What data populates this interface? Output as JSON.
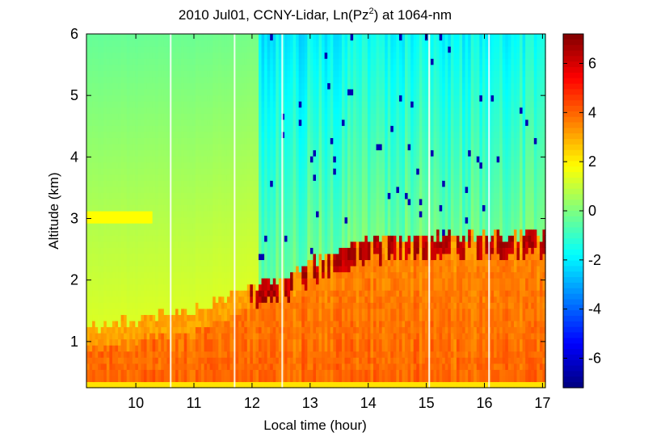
{
  "chart_data": {
    "type": "heatmap",
    "title_main": "2010 Jul01, CCNY-Lidar, Ln(Pz",
    "title_sup": "2",
    "title_tail": ") at 1064-nm",
    "xlabel": "Local time (hour)",
    "ylabel": "Altitude (km)",
    "xlim": [
      9.15,
      17.05
    ],
    "ylim": [
      0.25,
      6.0
    ],
    "x_ticks": [
      "10",
      "11",
      "12",
      "13",
      "14",
      "15",
      "16",
      "17"
    ],
    "y_ticks": [
      "1",
      "2",
      "3",
      "4",
      "5",
      "6"
    ],
    "colorbar": {
      "range": [
        -7.2,
        7.2
      ],
      "ticks": [
        "6",
        "4",
        "2",
        "0",
        "-2",
        "-4",
        "-6"
      ],
      "colors": [
        "#00007f",
        "#0000ff",
        "#007fff",
        "#00ffff",
        "#7fff7f",
        "#ffff00",
        "#ff7f00",
        "#ff0000",
        "#7f0000"
      ]
    },
    "gap_times": [
      10.6,
      11.7,
      12.52,
      15.05,
      16.08
    ],
    "boundary_layer_top": {
      "x": [
        9.2,
        10.0,
        10.6,
        11.0,
        11.5,
        12.0,
        12.5,
        13.0,
        13.5,
        14.0,
        14.5,
        15.0,
        15.5,
        16.0,
        16.5,
        17.0
      ],
      "y": [
        1.25,
        1.35,
        1.45,
        1.5,
        1.7,
        1.9,
        2.05,
        2.3,
        2.5,
        2.65,
        2.7,
        2.7,
        2.75,
        2.75,
        2.75,
        2.75
      ]
    }
  }
}
